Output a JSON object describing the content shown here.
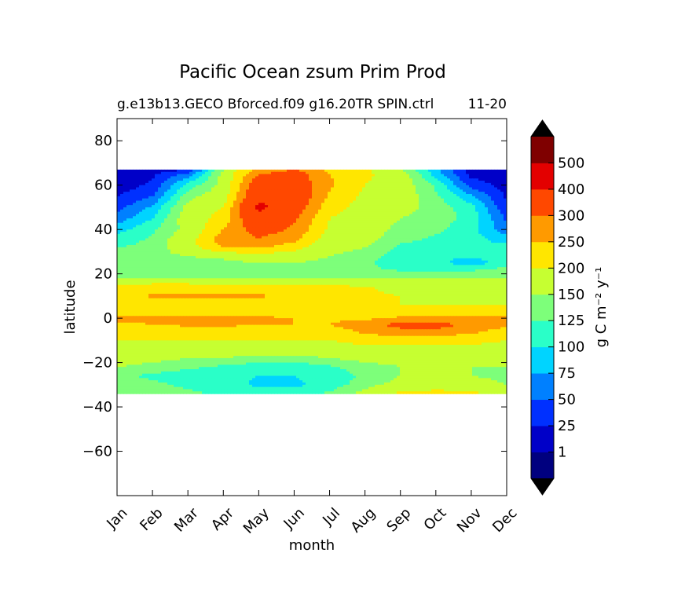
{
  "chart_data": {
    "type": "heatmap",
    "subtype": "filled-contour",
    "title": "Pacific Ocean zsum Prim Prod",
    "subtitle_left": "g.e13b13.GECO Bforced.f09 g16.20TR SPIN.ctrl",
    "subtitle_right": "11-20",
    "xlabel": "month",
    "ylabel": "latitude",
    "x_categories": [
      "Jan",
      "Feb",
      "Mar",
      "Apr",
      "May",
      "Jun",
      "Jul",
      "Aug",
      "Sep",
      "Oct",
      "Nov",
      "Dec"
    ],
    "xlim": [
      0,
      11
    ],
    "ylim": [
      -80,
      90
    ],
    "y_ticks": [
      "80",
      "60",
      "40",
      "20",
      "0",
      "−20",
      "−40",
      "−60"
    ],
    "y_tick_values": [
      80,
      60,
      40,
      20,
      0,
      -20,
      -40,
      -60
    ],
    "data_lat_range": [
      -34,
      67
    ],
    "colorbar": {
      "label": "g C m⁻² y⁻¹",
      "levels": [
        1,
        25,
        50,
        75,
        100,
        125,
        150,
        200,
        250,
        300,
        400,
        500
      ],
      "level_labels": [
        "1",
        "25",
        "50",
        "75",
        "100",
        "125",
        "150",
        "200",
        "250",
        "300",
        "400",
        "500"
      ],
      "colors": [
        "#00007f",
        "#0000c8",
        "#0030ff",
        "#0080ff",
        "#00d4ff",
        "#2affc8",
        "#7dff7a",
        "#c6ff31",
        "#ffe600",
        "#ff9a00",
        "#ff4800",
        "#e30000",
        "#7f0000"
      ],
      "extend": "both",
      "under_color": "#000000",
      "over_color": "#000000"
    },
    "grid": false,
    "legend": "colorbar-right",
    "zones": [
      {
        "month": 0,
        "lats": [
          67,
          65,
          60,
          55,
          50,
          45,
          40,
          35,
          32,
          28,
          25,
          22,
          18,
          14,
          10,
          6,
          3,
          0,
          -3,
          -6,
          -10,
          -14,
          -18,
          -22,
          -26,
          -30,
          -34
        ],
        "vals": [
          10,
          15,
          10,
          25,
          40,
          60,
          90,
          115,
          125,
          140,
          125,
          140,
          150,
          210,
          200,
          200,
          200,
          260,
          240,
          210,
          200,
          170,
          170,
          150,
          130,
          140,
          140
        ]
      },
      {
        "month": 1,
        "lats": [
          67,
          65,
          60,
          55,
          50,
          45,
          40,
          35,
          32,
          28,
          25,
          22,
          18,
          14,
          10,
          6,
          3,
          0,
          -3,
          -6,
          -10,
          -14,
          -18,
          -22,
          -26,
          -30,
          -34
        ],
        "vals": [
          10,
          20,
          30,
          50,
          80,
          100,
          120,
          130,
          130,
          140,
          130,
          140,
          150,
          230,
          260,
          210,
          220,
          260,
          250,
          210,
          200,
          170,
          160,
          140,
          120,
          130,
          135
        ]
      },
      {
        "month": 2,
        "lats": [
          67,
          65,
          60,
          55,
          50,
          45,
          40,
          35,
          32,
          28,
          25,
          22,
          18,
          14,
          10,
          6,
          3,
          0,
          -3,
          -6,
          -10,
          -14,
          -18,
          -22,
          -26,
          -30,
          -34
        ],
        "vals": [
          20,
          60,
          110,
          140,
          160,
          170,
          160,
          180,
          180,
          150,
          140,
          140,
          150,
          230,
          260,
          210,
          220,
          270,
          260,
          210,
          200,
          170,
          150,
          130,
          110,
          120,
          130
        ]
      },
      {
        "month": 3,
        "lats": [
          67,
          65,
          60,
          55,
          50,
          45,
          40,
          35,
          32,
          28,
          25,
          22,
          18,
          14,
          10,
          6,
          3,
          0,
          -3,
          -6,
          -10,
          -14,
          -18,
          -22,
          -26,
          -30,
          -34
        ],
        "vals": [
          150,
          160,
          160,
          170,
          200,
          220,
          250,
          280,
          250,
          160,
          140,
          140,
          150,
          220,
          260,
          210,
          230,
          270,
          260,
          220,
          200,
          170,
          150,
          120,
          110,
          110,
          120
        ]
      },
      {
        "month": 4,
        "lats": [
          67,
          65,
          60,
          55,
          50,
          45,
          40,
          35,
          32,
          28,
          25,
          22,
          18,
          14,
          10,
          6,
          3,
          0,
          -3,
          -6,
          -10,
          -14,
          -18,
          -22,
          -26,
          -30,
          -34
        ],
        "vals": [
          260,
          300,
          350,
          380,
          420,
          380,
          330,
          290,
          260,
          180,
          150,
          140,
          150,
          210,
          260,
          210,
          220,
          260,
          250,
          220,
          200,
          170,
          140,
          110,
          100,
          95,
          110
        ]
      },
      {
        "month": 5,
        "lats": [
          67,
          65,
          60,
          55,
          50,
          45,
          40,
          35,
          32,
          28,
          25,
          22,
          18,
          14,
          10,
          6,
          3,
          0,
          -3,
          -6,
          -10,
          -14,
          -18,
          -22,
          -26,
          -30,
          -34
        ],
        "vals": [
          300,
          330,
          340,
          360,
          340,
          310,
          290,
          260,
          220,
          170,
          150,
          140,
          150,
          210,
          230,
          210,
          220,
          250,
          250,
          220,
          200,
          170,
          140,
          110,
          100,
          95,
          110
        ]
      },
      {
        "month": 6,
        "lats": [
          67,
          65,
          60,
          55,
          50,
          45,
          40,
          35,
          32,
          28,
          25,
          22,
          18,
          14,
          10,
          6,
          3,
          0,
          -3,
          -6,
          -10,
          -14,
          -18,
          -22,
          -26,
          -30,
          -34
        ],
        "vals": [
          240,
          250,
          260,
          240,
          220,
          200,
          190,
          170,
          160,
          150,
          140,
          140,
          150,
          210,
          215,
          210,
          215,
          240,
          250,
          220,
          200,
          170,
          150,
          120,
          110,
          110,
          130
        ]
      },
      {
        "month": 7,
        "lats": [
          67,
          65,
          60,
          55,
          50,
          45,
          40,
          35,
          32,
          28,
          25,
          22,
          18,
          14,
          10,
          6,
          3,
          0,
          -3,
          -6,
          -10,
          -14,
          -18,
          -22,
          -26,
          -30,
          -34
        ],
        "vals": [
          210,
          210,
          200,
          190,
          180,
          170,
          170,
          160,
          150,
          140,
          130,
          130,
          150,
          205,
          210,
          205,
          210,
          240,
          280,
          260,
          220,
          180,
          160,
          140,
          130,
          140,
          160
        ]
      },
      {
        "month": 8,
        "lats": [
          67,
          65,
          60,
          55,
          50,
          45,
          40,
          35,
          32,
          28,
          25,
          22,
          18,
          14,
          10,
          6,
          3,
          0,
          -3,
          -6,
          -10,
          -14,
          -18,
          -22,
          -26,
          -30,
          -34
        ],
        "vals": [
          150,
          170,
          170,
          170,
          160,
          150,
          140,
          130,
          120,
          110,
          110,
          120,
          150,
          180,
          200,
          200,
          210,
          260,
          320,
          280,
          220,
          180,
          160,
          150,
          150,
          160,
          210
        ]
      },
      {
        "month": 9,
        "lats": [
          67,
          65,
          60,
          55,
          50,
          45,
          40,
          35,
          32,
          28,
          25,
          22,
          18,
          14,
          10,
          6,
          3,
          0,
          -3,
          -6,
          -10,
          -14,
          -18,
          -22,
          -26,
          -30,
          -34
        ],
        "vals": [
          80,
          90,
          120,
          130,
          140,
          140,
          130,
          120,
          110,
          105,
          110,
          120,
          150,
          170,
          190,
          200,
          210,
          260,
          330,
          280,
          220,
          180,
          160,
          150,
          150,
          170,
          220
        ]
      },
      {
        "month": 10,
        "lats": [
          67,
          65,
          60,
          55,
          50,
          45,
          40,
          35,
          32,
          28,
          25,
          22,
          18,
          14,
          10,
          6,
          3,
          0,
          -3,
          -6,
          -10,
          -14,
          -18,
          -22,
          -26,
          -30,
          -34
        ],
        "vals": [
          10,
          15,
          40,
          80,
          110,
          115,
          110,
          110,
          105,
          105,
          80,
          120,
          150,
          170,
          190,
          200,
          210,
          260,
          280,
          260,
          220,
          180,
          160,
          150,
          150,
          170,
          210
        ]
      },
      {
        "month": 11,
        "lats": [
          67,
          65,
          60,
          55,
          50,
          45,
          40,
          35,
          32,
          28,
          25,
          22,
          18,
          14,
          10,
          6,
          3,
          0,
          -3,
          -6,
          -10,
          -14,
          -18,
          -22,
          -26,
          -30,
          -34
        ],
        "vals": [
          5,
          10,
          15,
          20,
          30,
          45,
          60,
          90,
          110,
          115,
          120,
          130,
          150,
          180,
          200,
          200,
          210,
          260,
          260,
          230,
          200,
          170,
          160,
          150,
          140,
          150,
          180
        ]
      }
    ]
  }
}
